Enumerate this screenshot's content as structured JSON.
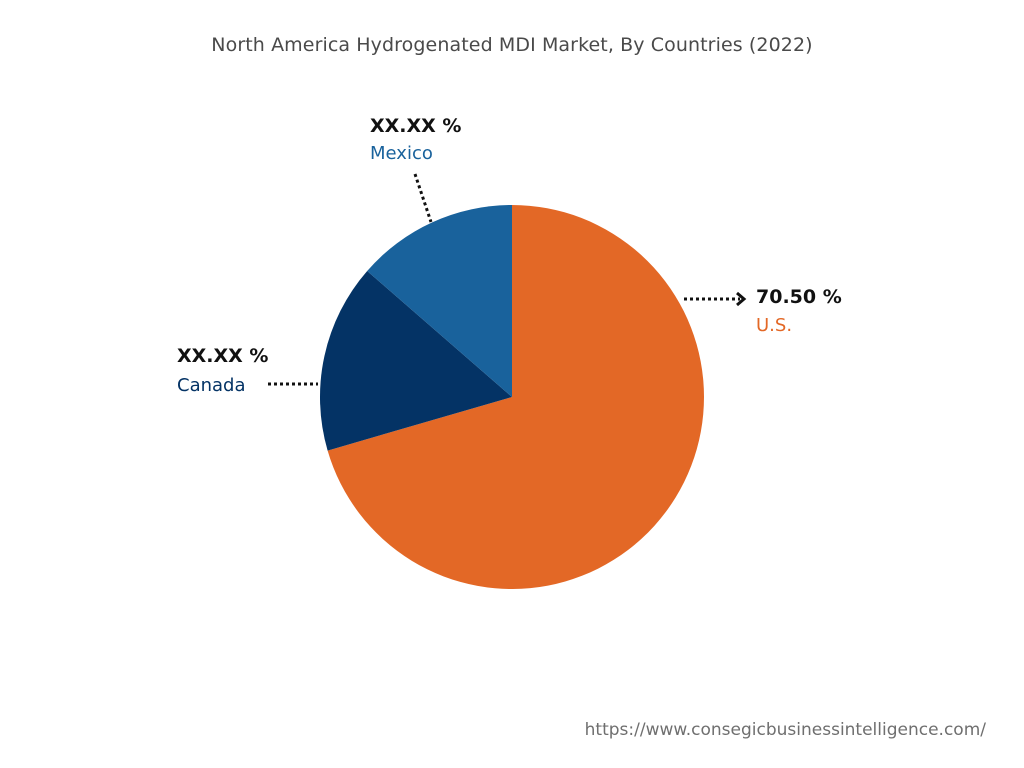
{
  "colors": {
    "us": "#e36826",
    "canada": "#043365",
    "mexico": "#19629c",
    "leader": "#111111"
  },
  "chart_data": {
    "type": "pie",
    "title": "North America Hydrogenated MDI Market, By Countries (2022)",
    "slices": [
      {
        "name": "U.S.",
        "value_label": "70.50 %",
        "share_pct": 70.5,
        "color": "#e36826"
      },
      {
        "name": "Canada",
        "value_label": "XX.XX %",
        "share_pct": 15.9,
        "color": "#043365"
      },
      {
        "name": "Mexico",
        "value_label": "XX.XX %",
        "share_pct": 13.6,
        "color": "#19629c"
      }
    ]
  },
  "footer": {
    "url": "https://www.consegicbusinessintelligence.com/"
  }
}
